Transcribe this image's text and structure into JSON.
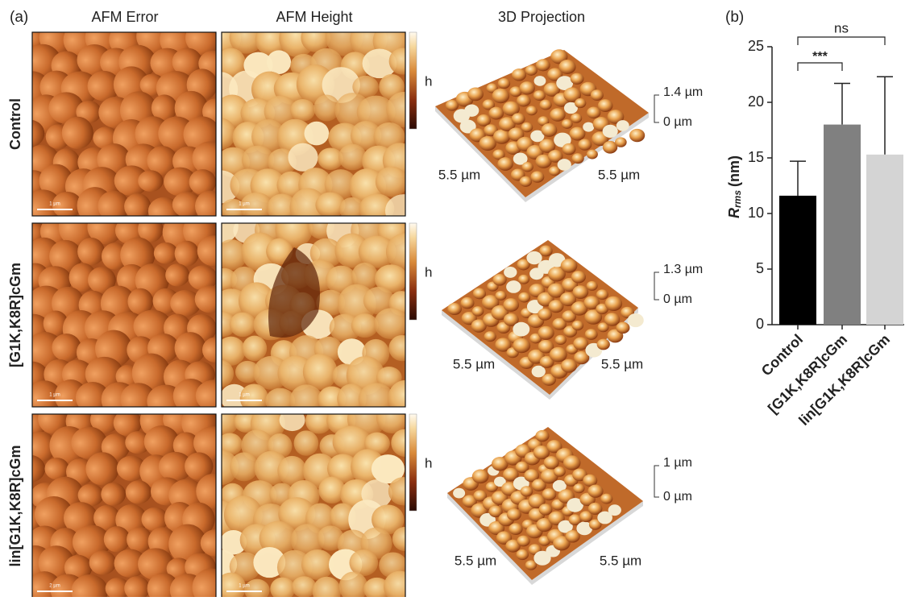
{
  "panel_a": {
    "label": "(a)",
    "columns": [
      "AFM Error",
      "AFM Height",
      "3D Projection"
    ],
    "rows": [
      {
        "name": "Control",
        "colorbar_label": "h",
        "z_top": "1.4 µm",
        "z_bottom": "0 µm",
        "x_size": "5.5 µm",
        "y_size": "5.5 µm",
        "scale_bars": [
          "1 µm",
          "1 µm"
        ]
      },
      {
        "name": "[G1K,K8R]cGm",
        "colorbar_label": "h",
        "z_top": "1.3 µm",
        "z_bottom": "0 µm",
        "x_size": "5.5 µm",
        "y_size": "5.5 µm",
        "scale_bars": [
          "1 µm",
          "1 µm"
        ]
      },
      {
        "name": "lin[G1K,K8R]cGm",
        "colorbar_label": "h",
        "z_top": "1 µm",
        "z_bottom": "0 µm",
        "x_size": "5.5 µm",
        "y_size": "5.5 µm",
        "scale_bars": [
          "2 µm",
          "1 µm"
        ]
      }
    ]
  },
  "chart_data": {
    "type": "bar",
    "panel_label": "(b)",
    "y_label": {
      "symbol": "R",
      "subscript": "rms",
      "unit": "(nm)"
    },
    "categories": [
      "Control",
      "[G1K,K8R]cGm",
      "lin[G1K,K8R]cGm"
    ],
    "values": [
      11.6,
      18.0,
      15.3
    ],
    "errors": [
      3.1,
      3.7,
      7.0
    ],
    "colors": [
      "#000000",
      "#808080",
      "#d4d4d4"
    ],
    "ylim": [
      0,
      25
    ],
    "yticks": [
      0,
      5,
      10,
      15,
      20,
      25
    ],
    "significance": [
      "***",
      "ns"
    ]
  }
}
